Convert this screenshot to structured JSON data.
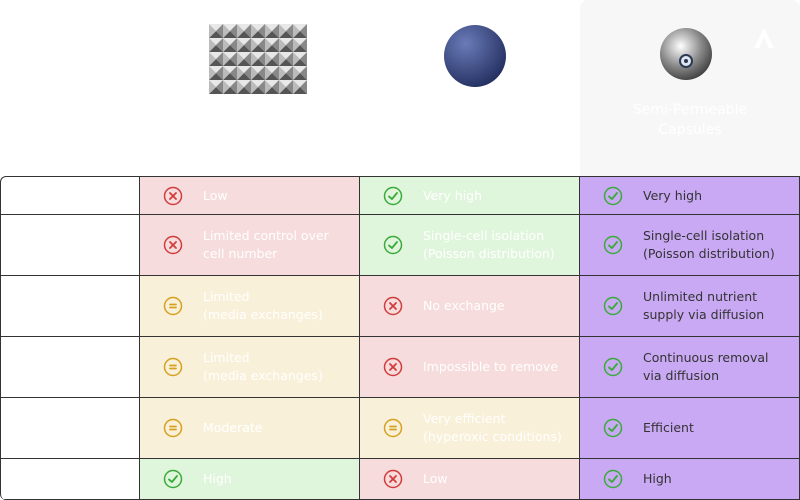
{
  "header": {
    "capsule_title": "Semi-Permeable\nCapsules"
  },
  "highlight_column": 2,
  "rows": [
    {
      "cells": [
        {
          "text": "Low",
          "status": "bad"
        },
        {
          "text": "Very high",
          "status": "good"
        },
        {
          "text": "Very high",
          "status": "good"
        }
      ]
    },
    {
      "cells": [
        {
          "text": "Limited control over\ncell number",
          "status": "bad"
        },
        {
          "text": "Single-cell isolation\n(Poisson distribution)",
          "status": "good"
        },
        {
          "text": "Single-cell isolation\n(Poisson distribution)",
          "status": "good"
        }
      ]
    },
    {
      "cells": [
        {
          "text": "Limited\n(media exchanges)",
          "status": "mid"
        },
        {
          "text": "No exchange",
          "status": "bad"
        },
        {
          "text": "Unlimited nutrient\nsupply via diffusion",
          "status": "good"
        }
      ]
    },
    {
      "cells": [
        {
          "text": "Limited\n(media exchanges)",
          "status": "mid"
        },
        {
          "text": "Impossible to remove",
          "status": "bad"
        },
        {
          "text": "Continuous removal\nvia diffusion",
          "status": "good"
        }
      ]
    },
    {
      "cells": [
        {
          "text": "Moderate",
          "status": "mid"
        },
        {
          "text": "Very efficient\n(hyperoxic conditions)",
          "status": "mid"
        },
        {
          "text": "Efficient",
          "status": "good"
        }
      ]
    },
    {
      "cells": [
        {
          "text": "High",
          "status": "good"
        },
        {
          "text": "Low",
          "status": "bad"
        },
        {
          "text": "High",
          "status": "good"
        }
      ]
    }
  ]
}
